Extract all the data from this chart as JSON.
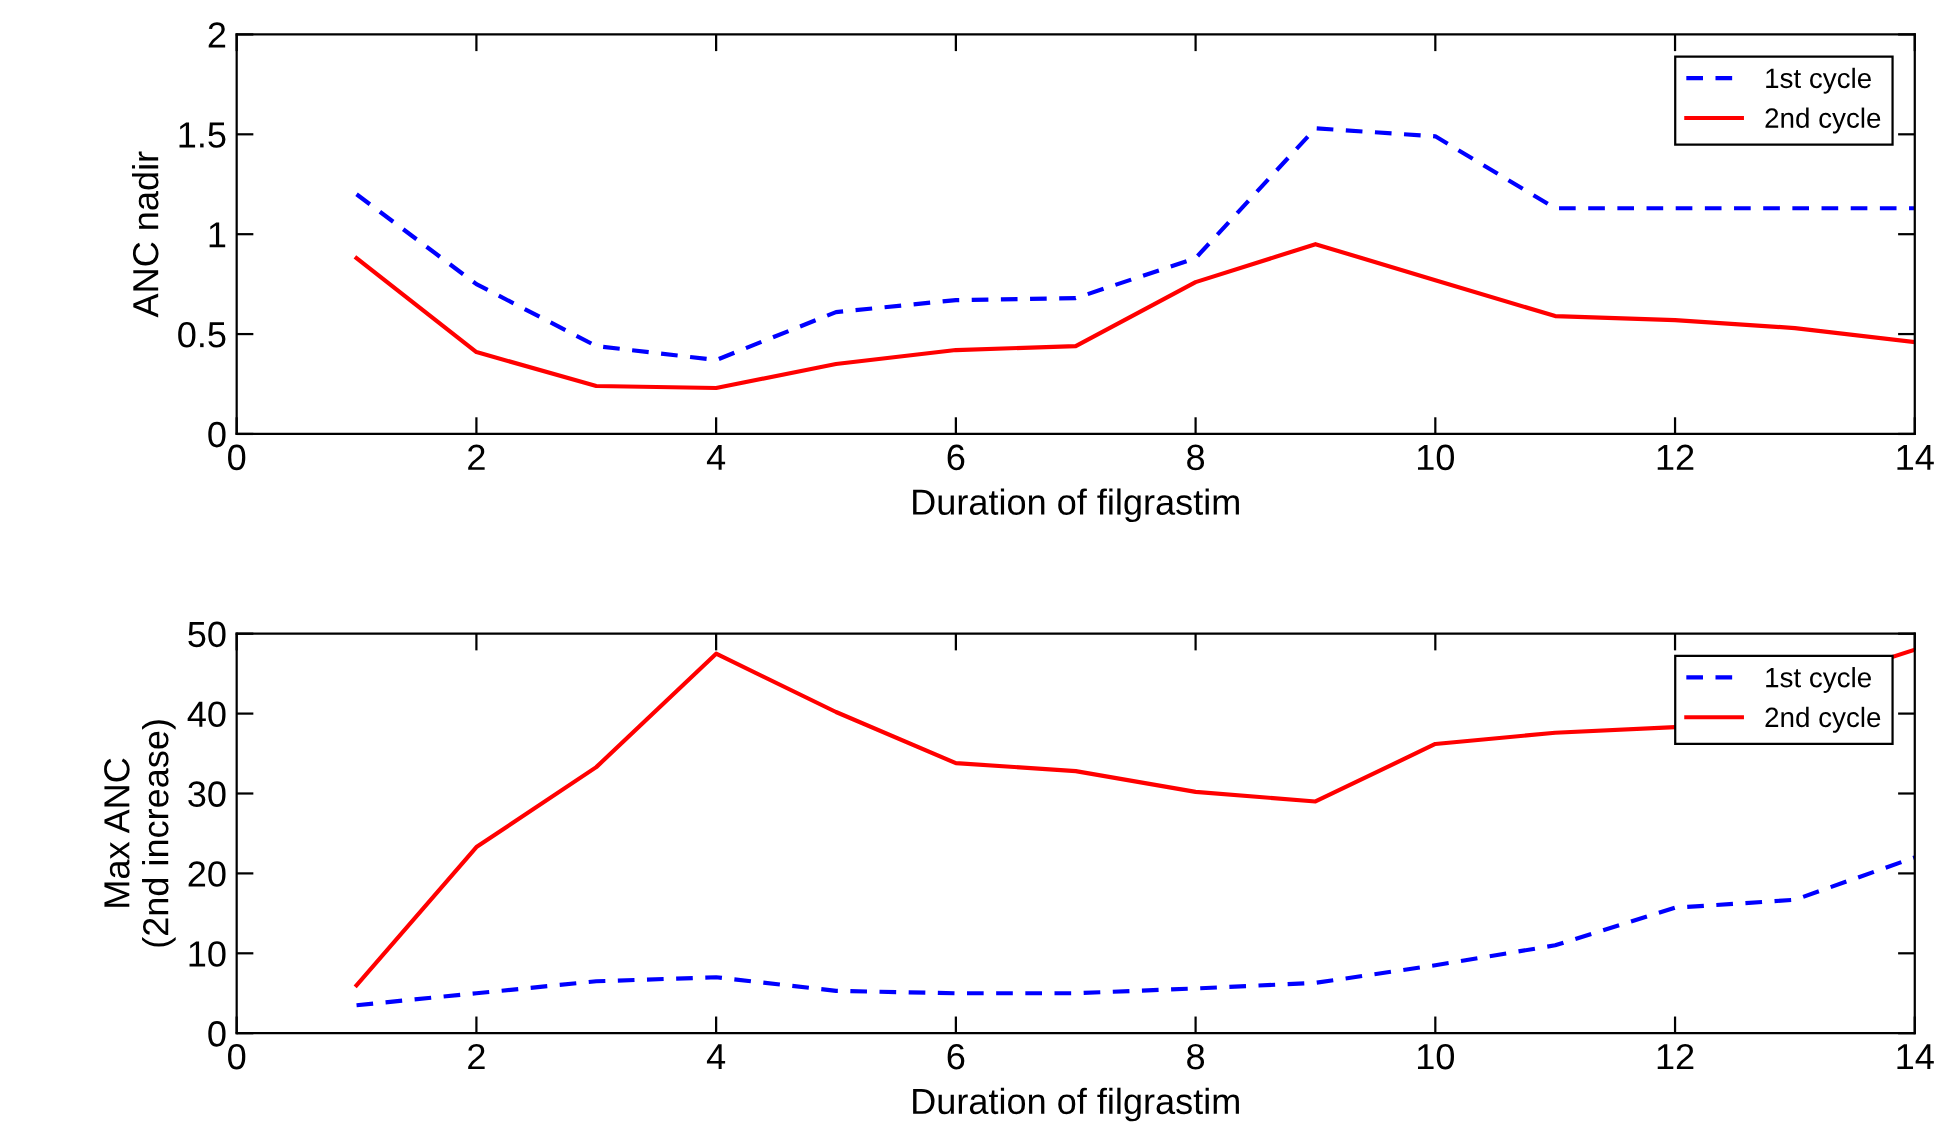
{
  "chart_data": [
    {
      "type": "line",
      "xlabel": "Duration of filgrastim",
      "ylabel": "ANC nadir",
      "x": [
        1,
        2,
        3,
        4,
        5,
        6,
        7,
        8,
        9,
        10,
        11,
        12,
        13,
        14
      ],
      "series": [
        {
          "name": "1st cycle",
          "color": "#0000ff",
          "line_style": "dashed",
          "values": [
            1.2,
            0.75,
            0.44,
            0.37,
            0.61,
            0.67,
            0.68,
            0.88,
            1.53,
            1.49,
            1.13,
            1.13,
            1.13,
            1.13
          ]
        },
        {
          "name": "2nd cycle",
          "color": "#ff0000",
          "line_style": "solid",
          "values": [
            0.88,
            0.41,
            0.24,
            0.23,
            0.35,
            0.42,
            0.44,
            0.76,
            0.95,
            0.77,
            0.59,
            0.57,
            0.53,
            0.46
          ]
        }
      ],
      "xlim": [
        0,
        14
      ],
      "xticks": [
        0,
        2,
        4,
        6,
        8,
        10,
        12,
        14
      ],
      "ylim": [
        0,
        2
      ],
      "yticks": [
        0,
        {
          "value": 0.5,
          "label": "0.5"
        },
        1,
        {
          "value": 1.5,
          "label": "1.5"
        },
        2
      ],
      "legend": "top right",
      "grid": false
    },
    {
      "type": "line",
      "xlabel": "Duration of filgrastim",
      "ylabel": "Max ANC\n(2nd increase)",
      "x": [
        1,
        2,
        3,
        4,
        5,
        6,
        7,
        8,
        9,
        10,
        11,
        12,
        13,
        14
      ],
      "series": [
        {
          "name": "1st cycle",
          "color": "#0000ff",
          "line_style": "dashed",
          "values": [
            3.5,
            5,
            6.5,
            7,
            5.3,
            5,
            5,
            5.6,
            6.3,
            8.5,
            11,
            15.7,
            16.7,
            22
          ]
        },
        {
          "name": "2nd cycle",
          "color": "#ff0000",
          "line_style": "solid",
          "x": [
            1,
            2,
            3,
            4,
            5,
            6,
            7,
            8,
            9,
            10,
            11,
            12,
            14
          ],
          "values": [
            6,
            23.3,
            33.3,
            47.5,
            40.2,
            33.8,
            32.8,
            30.2,
            29,
            36.2,
            37.6,
            38.3,
            48
          ]
        }
      ],
      "xlim": [
        0,
        14
      ],
      "xticks": [
        0,
        2,
        4,
        6,
        8,
        10,
        12,
        14
      ],
      "ylim": [
        0,
        50
      ],
      "yticks": [
        0,
        10,
        20,
        30,
        40,
        50
      ],
      "legend": "top right",
      "grid": false
    }
  ]
}
